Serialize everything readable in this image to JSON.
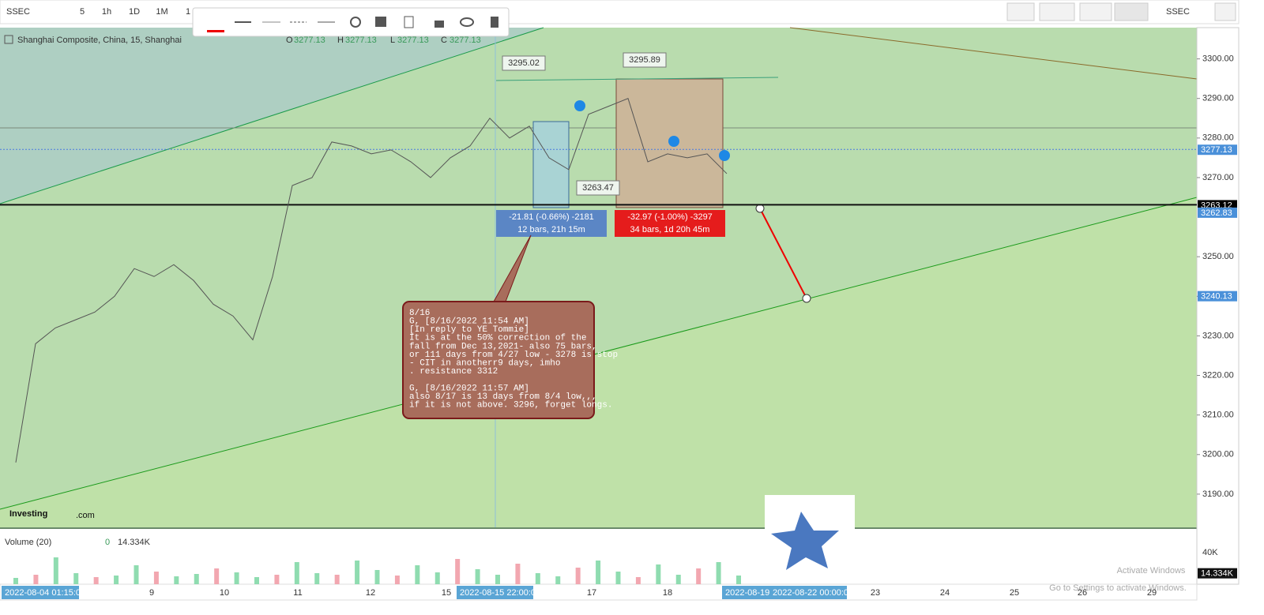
{
  "toolbar": {
    "symbol": "SSEC",
    "intervals": [
      "5",
      "1h",
      "1D",
      "1M",
      "1"
    ],
    "right_symbol": "SSEC"
  },
  "legend": {
    "title": "Shanghai Composite, China, 15, Shanghai",
    "o_label": "O",
    "o": "3277.13",
    "h_label": "H",
    "h": "3277.13",
    "l_label": "L",
    "l": "3277.13",
    "c_label": "C",
    "c": "3277.13"
  },
  "chart_data": {
    "type": "line",
    "color": "#555555",
    "values": [
      3198,
      3228,
      3232,
      3234,
      3236,
      3240,
      3247,
      3245,
      3248,
      3244,
      3238,
      3235,
      3229,
      3245,
      3268,
      3270,
      3279,
      3278,
      3276,
      3277,
      3274,
      3270,
      3275,
      3278,
      3285,
      3280,
      3283,
      3275,
      3272,
      3286,
      3288,
      3290,
      3274,
      3276,
      3275,
      3276,
      3271
    ],
    "ylim": [
      3181.6,
      3307.9
    ],
    "yticks": [
      {
        "value": 3300,
        "label": "3300.00"
      },
      {
        "value": 3290,
        "label": "3290.00"
      },
      {
        "value": 3280,
        "label": "3280.00"
      },
      {
        "value": 3270,
        "label": "3270.00"
      },
      {
        "value": 3250,
        "label": "3250.00"
      },
      {
        "value": 3240,
        "label": "3240.00"
      },
      {
        "value": 3230,
        "label": "3230.00"
      },
      {
        "value": 3220,
        "label": "3220.00"
      },
      {
        "value": 3210,
        "label": "3210.00"
      },
      {
        "value": 3200,
        "label": "3200.00"
      },
      {
        "value": 3190,
        "label": "3190.00"
      }
    ],
    "price_labels": [
      {
        "value": 3277.13,
        "label": "3277.13",
        "color": "#4a90d9"
      },
      {
        "value": 3263.12,
        "label": "3263.12",
        "color": "#000000"
      },
      {
        "value": 3262.83,
        "label": "3262.83",
        "color": "#4a90d9"
      },
      {
        "value": 3240.13,
        "label": "3240.13",
        "color": "#4a90d9"
      }
    ],
    "xticks": [
      "9",
      "10",
      "11",
      "12",
      "15",
      "17",
      "18",
      "23",
      "24",
      "25",
      "26",
      "29"
    ],
    "time_labels": [
      "2022-08-04 01:15:00",
      "2022-08-15 22:00:00",
      "2022-08-19 (",
      "2022-08-22 00:00:00"
    ]
  },
  "annotations": {
    "high1": "3295.02",
    "high2": "3295.89",
    "low1": "3263.47",
    "measure1": [
      "-21.81 (-0.66%) -2181",
      "12 bars, 21h 15m"
    ],
    "measure2": [
      "-32.97 (-1.00%) -3297",
      "34 bars, 1d 20h 45m"
    ],
    "note": [
      "8/16",
      "G, [8/16/2022 11:54 AM]",
      "[In reply to YE Tommie]",
      "It is at the 50% correction of the",
      " fall from Dec 13,2021- also 75 bars,",
      "or 111 days from 4/27 low - 3278 is stop",
      "  - CIT in anotherr9 days, imho",
      "  . resistance 3312",
      "",
      "G, [8/16/2022 11:57 AM]",
      "also 8/17 is 13 days from 8/4 low,,,",
      " if it is not above. 3296, forget longs."
    ]
  },
  "logo": {
    "name": "Investing",
    "suffix": ".com"
  },
  "volume": {
    "label": "Volume (20)",
    "zero": "0",
    "current": {
      "value": 14334,
      "label": "14.334K"
    },
    "yticks": [
      {
        "value": 40000,
        "label": "40K"
      }
    ],
    "values": [
      8000,
      12000,
      34000,
      14000,
      9000,
      11000,
      24000,
      16000,
      10000,
      13000,
      20000,
      15000,
      9000,
      12000,
      28000,
      14000,
      12000,
      30000,
      18000,
      11000,
      24000,
      15000,
      32000,
      19000,
      12000,
      26000,
      14000,
      10000,
      21000,
      30000,
      16000,
      9000,
      25000,
      12000,
      20000,
      28000,
      11000
    ]
  },
  "watermark": {
    "title": "Activate Windows",
    "subtitle": "Go to Settings to activate Windows."
  }
}
